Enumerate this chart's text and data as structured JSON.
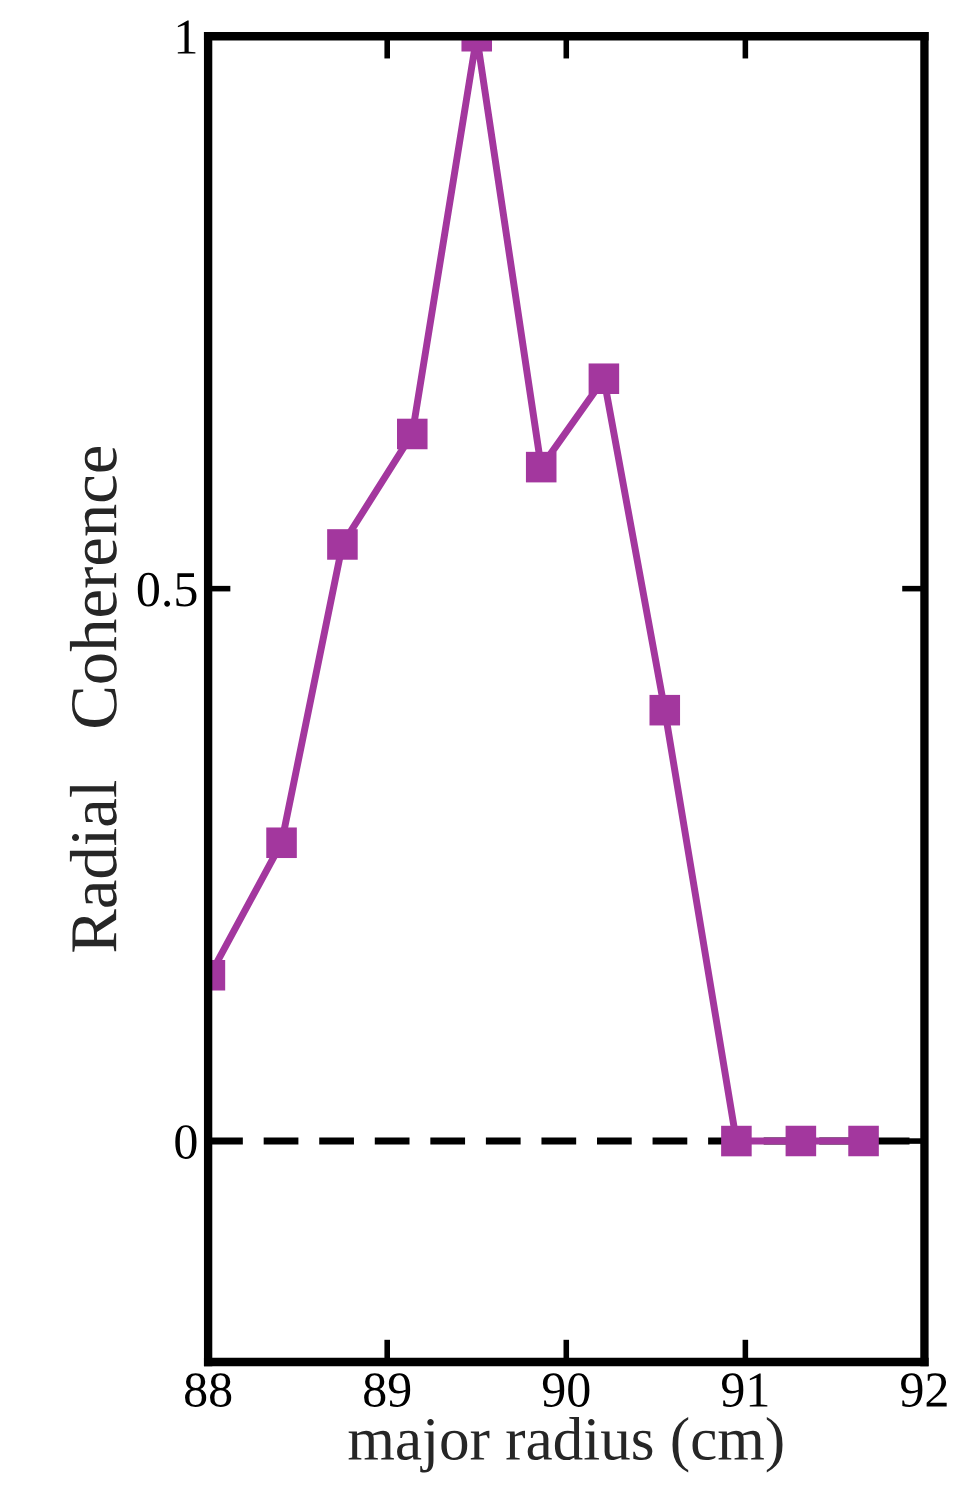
{
  "chart_data": {
    "type": "line",
    "xlabel": "major radius (cm)",
    "ylabel": "Radial   Coherence",
    "x": [
      88.01,
      88.41,
      88.75,
      89.14,
      89.5,
      89.86,
      90.21,
      90.55,
      90.95,
      91.31,
      91.66
    ],
    "series": [
      {
        "color": "#a3379e",
        "values": [
          0.15,
          0.27,
          0.54,
          0.64,
          1.0,
          0.61,
          0.69,
          0.39,
          0,
          0,
          0
        ]
      }
    ],
    "xlim": [
      88,
      92
    ],
    "xticks": [
      88,
      89,
      90,
      91,
      92
    ],
    "ylim": [
      -0.2,
      1
    ],
    "yticks": [
      0,
      0.5,
      1
    ],
    "ref_lines": [
      {
        "axis": "y",
        "value": 0,
        "color": "#000000",
        "line_style": "dashed"
      }
    ],
    "marker": "square",
    "line_style": "solid",
    "grid": false
  }
}
